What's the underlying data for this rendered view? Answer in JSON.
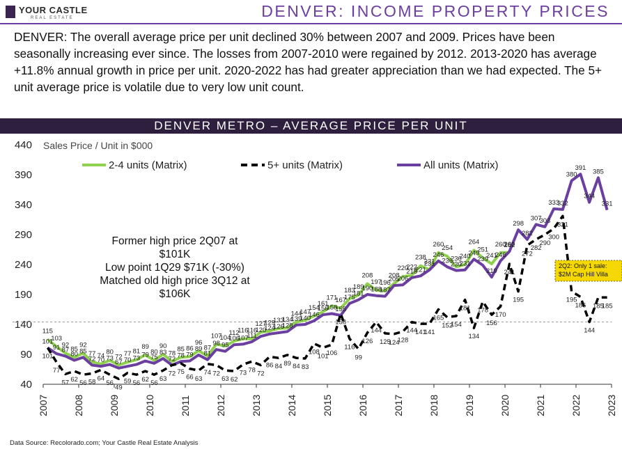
{
  "header": {
    "logo_text": "YOUR CASTLE",
    "logo_sub": "REAL ESTATE",
    "page_title": "DENVER: INCOME PROPERTY PRICES"
  },
  "intro": "DENVER: The overall average price per unit declined 30% between 2007 and 2009. Prices have been seasonally increasing ever since. The losses from 2007-2010 were regained by 2012.  2013-2020 has average +11.8% annual growth in price per unit.  2020-2022 has had greater appreciation than we had expected. The 5+ unit average price is volatile due to very low unit count.",
  "source": "Data Source: Recolorado.com; Your Castle Real Estate Analysis",
  "colors": {
    "series_2_4": "#8fd14f",
    "series_5plus": "#000000",
    "series_all": "#6b3fa0",
    "band": "#2d1f3d",
    "callout_fill": "#f5d800"
  },
  "chart_data": {
    "type": "line",
    "title": "DENVER METRO – AVERAGE PRICE PER UNIT",
    "ylabel": "Sales Price / Unit in $000",
    "ylim": [
      40,
      440
    ],
    "yticks": [
      40,
      90,
      140,
      190,
      240,
      290,
      340,
      390,
      440
    ],
    "xlim": [
      2007,
      2023
    ],
    "xticks": [
      "2007",
      "2008",
      "2009",
      "2010",
      "2011",
      "2012",
      "2013",
      "2014",
      "2015",
      "2016",
      "2017",
      "2018",
      "2019",
      "2020",
      "2021",
      "2022",
      "2023"
    ],
    "legend_position": "top",
    "reference_line": {
      "value": 144,
      "style": "dashed"
    },
    "series": [
      {
        "name": "2-4 units (Matrix)",
        "style": "solid",
        "values": [
          115,
          103,
          92,
          85,
          92,
          77,
          74,
          80,
          72,
          77,
          81,
          89,
          80,
          90,
          78,
          85,
          86,
          96,
          87,
          107,
          104,
          112,
          116,
          116,
          127,
          129,
          133,
          134,
          144,
          147,
          154,
          161,
          171,
          167,
          183,
          189,
          208,
          197,
          196,
          208,
          220,
          222,
          238,
          231,
          260,
          254,
          236,
          240,
          264,
          251,
          241,
          260,
          260,
          null,
          null,
          null,
          null,
          null,
          null,
          null,
          null,
          null,
          null,
          null
        ]
      },
      {
        "name": "5+ units (Matrix)",
        "style": "dashed",
        "values": [
          101,
          77,
          57,
          62,
          56,
          58,
          64,
          56,
          49,
          59,
          56,
          62,
          56,
          63,
          72,
          75,
          66,
          63,
          74,
          72,
          63,
          62,
          73,
          78,
          72,
          86,
          84,
          89,
          84,
          83,
          108,
          101,
          106,
          158,
          116,
          99,
          126,
          144,
          125,
          124,
          128,
          144,
          141,
          141,
          165,
          152,
          154,
          181,
          134,
          178,
          156,
          170,
          241,
          195,
          272,
          282,
          290,
          300,
          321,
          195,
          186,
          144,
          185,
          185
        ]
      },
      {
        "name": "All units (Matrix)",
        "style": "solid",
        "values": [
          null,
          null,
          null,
          null,
          null,
          null,
          null,
          null,
          null,
          null,
          null,
          null,
          null,
          null,
          null,
          null,
          null,
          null,
          null,
          null,
          null,
          null,
          null,
          null,
          null,
          null,
          null,
          null,
          null,
          null,
          null,
          null,
          null,
          null,
          null,
          null,
          null,
          null,
          null,
          null,
          null,
          null,
          null,
          null,
          null,
          null,
          null,
          null,
          null,
          null,
          null,
          null,
          null,
          null,
          null,
          null,
          null,
          null,
          null,
          null,
          null,
          null,
          null,
          null
        ]
      }
    ],
    "all_units_points": [
      [
        "2007Q1",
        null
      ],
      [
        "2007Q2",
        null
      ]
    ],
    "all_units_values": [
      101,
      91,
      87,
      80,
      85,
      72,
      70,
      73,
      67,
      70,
      73,
      79,
      75,
      83,
      72,
      78,
      79,
      89,
      81,
      98,
      95,
      106,
      107,
      111,
      120,
      124,
      126,
      128,
      139,
      140,
      146,
      156,
      158,
      155,
      175,
      181,
      190,
      188,
      187,
      205,
      206,
      218,
      221,
      231,
      246,
      236,
      230,
      231,
      249,
      239,
      219,
      246,
      262,
      298,
      282,
      307,
      303,
      333,
      332,
      380,
      391,
      344,
      385,
      331
    ],
    "top_labels": [
      383,
      397,
      389
    ],
    "annotations": [
      {
        "text_lines": [
          "Former high price 2Q07 at",
          "$101K",
          "Low point 1Q29 $71K (-30%)",
          "Matched old high price 3Q12 at",
          "$106K"
        ]
      },
      {
        "text_lines": [
          "2Q2: Only 1 sale:",
          "$2M Cap Hill Villa"
        ],
        "callout": true
      }
    ]
  }
}
